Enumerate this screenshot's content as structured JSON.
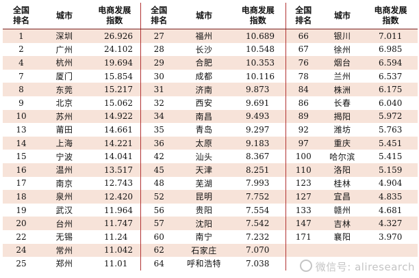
{
  "headers": {
    "rank": [
      "全国",
      "排名"
    ],
    "city": "城市",
    "index": [
      "电商发展",
      "指数"
    ]
  },
  "columns": [
    [
      {
        "rank": "1",
        "city": "深圳",
        "value": "26.926"
      },
      {
        "rank": "2",
        "city": "广州",
        "value": "24.102"
      },
      {
        "rank": "4",
        "city": "杭州",
        "value": "19.694"
      },
      {
        "rank": "7",
        "city": "厦门",
        "value": "15.854"
      },
      {
        "rank": "8",
        "city": "东莞",
        "value": "15.217"
      },
      {
        "rank": "9",
        "city": "北京",
        "value": "15.062"
      },
      {
        "rank": "10",
        "city": "苏州",
        "value": "14.922"
      },
      {
        "rank": "13",
        "city": "莆田",
        "value": "14.661"
      },
      {
        "rank": "14",
        "city": "上海",
        "value": "14.221"
      },
      {
        "rank": "15",
        "city": "宁波",
        "value": "14.041"
      },
      {
        "rank": "16",
        "city": "温州",
        "value": "13.517"
      },
      {
        "rank": "17",
        "city": "南京",
        "value": "12.743"
      },
      {
        "rank": "18",
        "city": "泉州",
        "value": "12.420"
      },
      {
        "rank": "19",
        "city": "武汉",
        "value": "11.964"
      },
      {
        "rank": "20",
        "city": "台州",
        "value": "11.747"
      },
      {
        "rank": "22",
        "city": "无锡",
        "value": "11.24"
      },
      {
        "rank": "24",
        "city": "常州",
        "value": "11.042"
      },
      {
        "rank": "25",
        "city": "郑州",
        "value": "11.01"
      }
    ],
    [
      {
        "rank": "27",
        "city": "福州",
        "value": "10.689"
      },
      {
        "rank": "28",
        "city": "长沙",
        "value": "10.548"
      },
      {
        "rank": "29",
        "city": "合肥",
        "value": "10.353"
      },
      {
        "rank": "30",
        "city": "成都",
        "value": "10.116"
      },
      {
        "rank": "31",
        "city": "济南",
        "value": "9.873"
      },
      {
        "rank": "32",
        "city": "西安",
        "value": "9.691"
      },
      {
        "rank": "34",
        "city": "南昌",
        "value": "9.493"
      },
      {
        "rank": "35",
        "city": "青岛",
        "value": "9.297"
      },
      {
        "rank": "36",
        "city": "太原",
        "value": "9.183"
      },
      {
        "rank": "42",
        "city": "汕头",
        "value": "8.367"
      },
      {
        "rank": "45",
        "city": "天津",
        "value": "8.251"
      },
      {
        "rank": "48",
        "city": "芜湖",
        "value": "7.993"
      },
      {
        "rank": "52",
        "city": "昆明",
        "value": "7.752"
      },
      {
        "rank": "56",
        "city": "贵阳",
        "value": "7.554"
      },
      {
        "rank": "57",
        "city": "沈阳",
        "value": "7.542"
      },
      {
        "rank": "60",
        "city": "南宁",
        "value": "7.232"
      },
      {
        "rank": "62",
        "city": "石家庄",
        "value": "7.070"
      },
      {
        "rank": "64",
        "city": "呼和浩特",
        "value": "7.038"
      }
    ],
    [
      {
        "rank": "66",
        "city": "银川",
        "value": "7.011"
      },
      {
        "rank": "67",
        "city": "徐州",
        "value": "6.985"
      },
      {
        "rank": "76",
        "city": "烟台",
        "value": "6.594"
      },
      {
        "rank": "78",
        "city": "兰州",
        "value": "6.537"
      },
      {
        "rank": "84",
        "city": "株洲",
        "value": "6.175"
      },
      {
        "rank": "86",
        "city": "长春",
        "value": "6.040"
      },
      {
        "rank": "89",
        "city": "揭阳",
        "value": "5.972"
      },
      {
        "rank": "92",
        "city": "潍坊",
        "value": "5.763"
      },
      {
        "rank": "97",
        "city": "重庆",
        "value": "5.451"
      },
      {
        "rank": "100",
        "city": "哈尔滨",
        "value": "5.415"
      },
      {
        "rank": "110",
        "city": "洛阳",
        "value": "5.159"
      },
      {
        "rank": "123",
        "city": "桂林",
        "value": "4.904"
      },
      {
        "rank": "127",
        "city": "宜昌",
        "value": "4.835"
      },
      {
        "rank": "133",
        "city": "赣州",
        "value": "4.681"
      },
      {
        "rank": "147",
        "city": "吉林",
        "value": "4.327"
      },
      {
        "rank": "171",
        "city": "襄阳",
        "value": "3.970"
      },
      {
        "rank": "",
        "city": "",
        "value": ""
      },
      {
        "rank": "",
        "city": "",
        "value": ""
      }
    ]
  ],
  "watermark": "微信号: aliresearch",
  "colors": {
    "stripe": "#f7e3d9",
    "separator": "#b03030"
  }
}
